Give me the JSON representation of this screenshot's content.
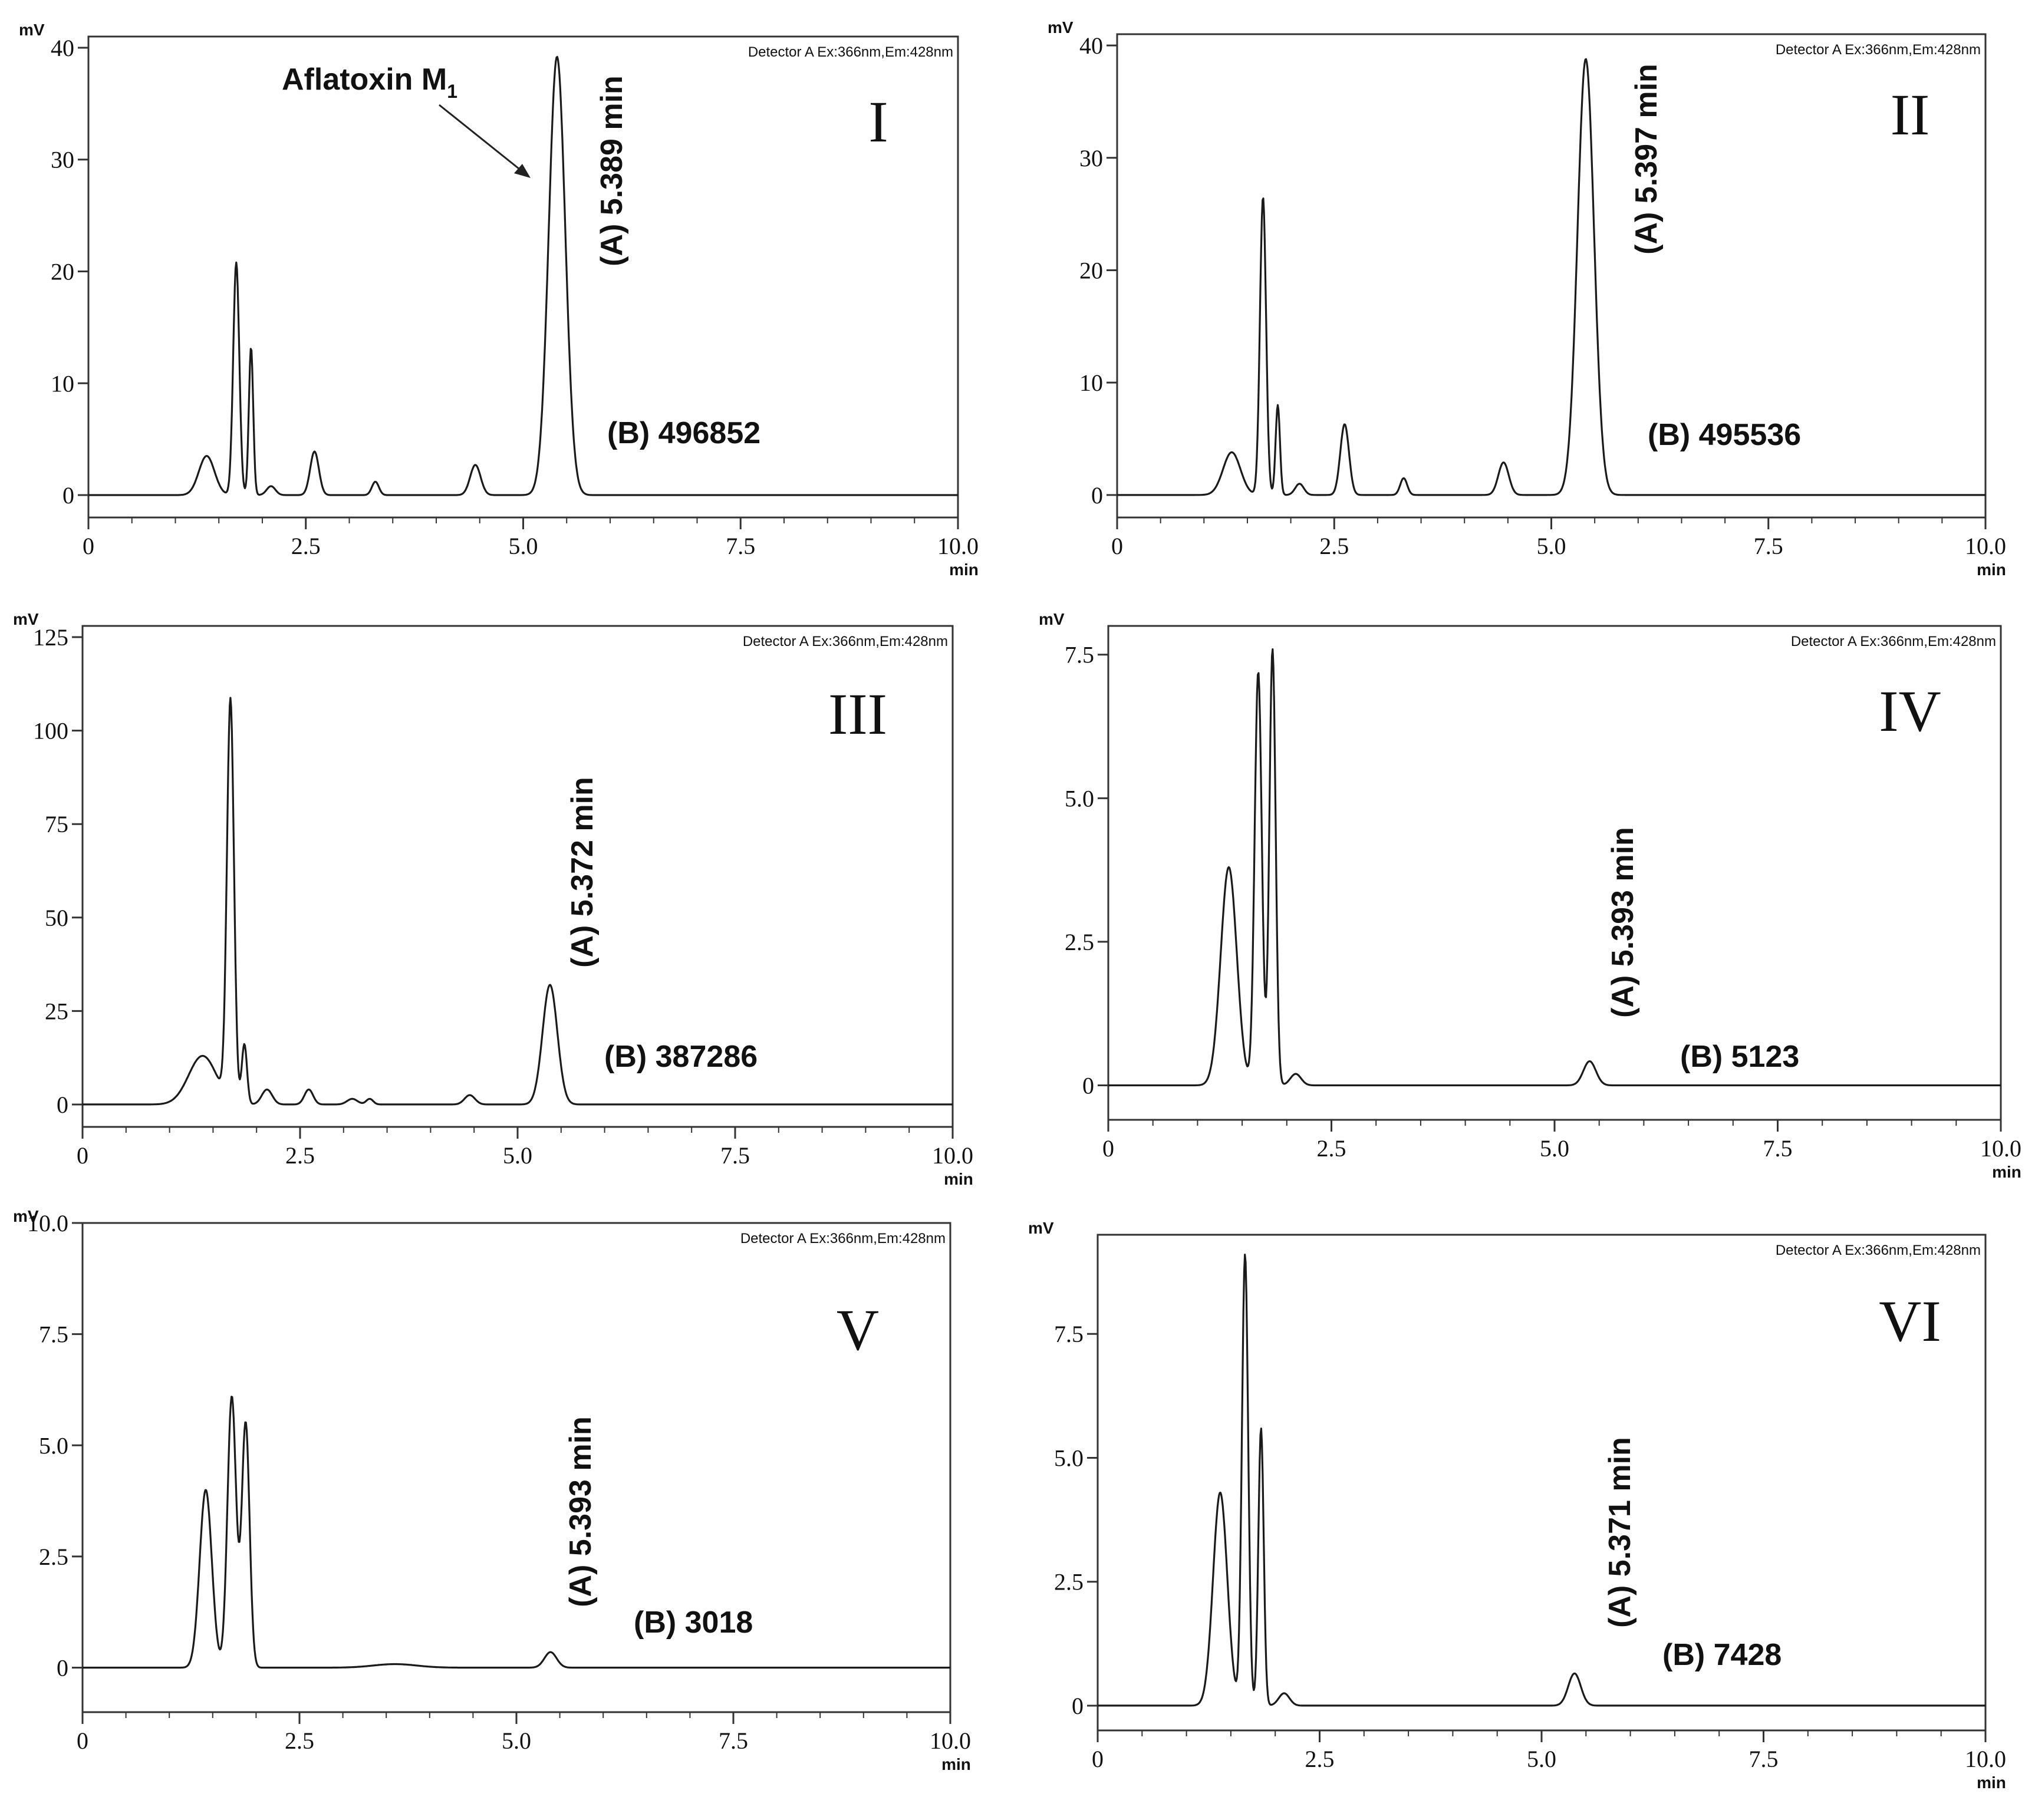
{
  "colors": {
    "trace": "#1a1a1a",
    "axis": "#333333",
    "text": "#111111",
    "background": "#ffffff"
  },
  "chart_data": [
    {
      "type": "line",
      "panel_label": "I",
      "y_unit": "mV",
      "x_unit": "min",
      "detector_label": "Detector A Ex:366nm,Em:428nm",
      "xlim": [
        0,
        10.0
      ],
      "ylim": [
        -2,
        41
      ],
      "x_ticks": [
        0,
        2.5,
        5.0,
        7.5,
        10.0
      ],
      "x_tick_labels": [
        "0",
        "2.5",
        "5.0",
        "7.5",
        "10.0"
      ],
      "y_ticks": [
        0,
        10,
        20,
        30,
        40
      ],
      "y_tick_labels": [
        "0",
        "10",
        "20",
        "30",
        "40"
      ],
      "peaks": [
        {
          "rt": 1.36,
          "height": 3.5,
          "width": 0.09
        },
        {
          "rt": 1.7,
          "height": 20.8,
          "width": 0.035
        },
        {
          "rt": 1.87,
          "height": 13.2,
          "width": 0.025
        },
        {
          "rt": 2.1,
          "height": 0.8,
          "width": 0.05
        },
        {
          "rt": 2.6,
          "height": 3.9,
          "width": 0.05
        },
        {
          "rt": 3.3,
          "height": 1.2,
          "width": 0.04
        },
        {
          "rt": 4.45,
          "height": 2.7,
          "width": 0.06
        },
        {
          "rt": 5.389,
          "height": 39.2,
          "width": 0.095
        }
      ],
      "baseline": 0,
      "retention_label": "(A) 5.389 min",
      "area_label": "(B) 496852",
      "compound_annotation": {
        "text": "Aflatoxin M",
        "subscript": "1"
      }
    },
    {
      "type": "line",
      "panel_label": "II",
      "y_unit": "mV",
      "x_unit": "min",
      "detector_label": "Detector A Ex:366nm,Em:428nm",
      "xlim": [
        0,
        10.0
      ],
      "ylim": [
        -2,
        41
      ],
      "x_ticks": [
        0,
        2.5,
        5.0,
        7.5,
        10.0
      ],
      "x_tick_labels": [
        "0",
        "2.5",
        "5.0",
        "7.5",
        "10.0"
      ],
      "y_ticks": [
        0,
        10,
        20,
        30,
        40
      ],
      "y_tick_labels": [
        "0",
        "10",
        "20",
        "30",
        "40"
      ],
      "peaks": [
        {
          "rt": 1.32,
          "height": 3.8,
          "width": 0.1
        },
        {
          "rt": 1.68,
          "height": 26.5,
          "width": 0.035
        },
        {
          "rt": 1.85,
          "height": 8.0,
          "width": 0.025
        },
        {
          "rt": 2.1,
          "height": 1.0,
          "width": 0.05
        },
        {
          "rt": 2.62,
          "height": 6.3,
          "width": 0.05
        },
        {
          "rt": 3.3,
          "height": 1.5,
          "width": 0.04
        },
        {
          "rt": 4.45,
          "height": 2.9,
          "width": 0.06
        },
        {
          "rt": 5.397,
          "height": 38.8,
          "width": 0.095
        }
      ],
      "baseline": 0,
      "retention_label": "(A) 5.397 min",
      "area_label": "(B) 495536"
    },
    {
      "type": "line",
      "panel_label": "III",
      "y_unit": "mV",
      "x_unit": "min",
      "detector_label": "Detector A Ex:366nm,Em:428nm",
      "xlim": [
        0,
        10.0
      ],
      "ylim": [
        -6,
        128
      ],
      "x_ticks": [
        0,
        2.5,
        5.0,
        7.5,
        10.0
      ],
      "x_tick_labels": [
        "0",
        "2.5",
        "5.0",
        "7.5",
        "10.0"
      ],
      "y_ticks": [
        0,
        25,
        50,
        75,
        100,
        125
      ],
      "y_tick_labels": [
        "0",
        "25",
        "50",
        "75",
        "100",
        "125"
      ],
      "peaks": [
        {
          "rt": 1.38,
          "height": 13.0,
          "width": 0.16
        },
        {
          "rt": 1.7,
          "height": 107.0,
          "width": 0.04
        },
        {
          "rt": 1.86,
          "height": 16.0,
          "width": 0.03
        },
        {
          "rt": 2.12,
          "height": 4.0,
          "width": 0.06
        },
        {
          "rt": 2.6,
          "height": 4.0,
          "width": 0.05
        },
        {
          "rt": 3.1,
          "height": 1.5,
          "width": 0.06
        },
        {
          "rt": 3.3,
          "height": 1.5,
          "width": 0.04
        },
        {
          "rt": 4.45,
          "height": 2.5,
          "width": 0.06
        },
        {
          "rt": 5.372,
          "height": 32.0,
          "width": 0.085
        }
      ],
      "baseline": 0,
      "retention_label": "(A) 5.372 min",
      "area_label": "(B) 387286"
    },
    {
      "type": "line",
      "panel_label": "IV",
      "y_unit": "mV",
      "x_unit": "min",
      "detector_label": "Detector A Ex:366nm,Em:428nm",
      "xlim": [
        0,
        10.0
      ],
      "ylim": [
        -0.6,
        8.0
      ],
      "x_ticks": [
        0,
        2.5,
        5.0,
        7.5,
        10.0
      ],
      "x_tick_labels": [
        "0",
        "2.5",
        "5.0",
        "7.5",
        "10.0"
      ],
      "y_ticks": [
        0,
        2.5,
        5.0,
        7.5
      ],
      "y_tick_labels": [
        "0",
        "2.5",
        "5.0",
        "7.5"
      ],
      "peaks": [
        {
          "rt": 1.35,
          "height": 3.8,
          "width": 0.09
        },
        {
          "rt": 1.68,
          "height": 7.2,
          "width": 0.04
        },
        {
          "rt": 1.84,
          "height": 7.6,
          "width": 0.035
        },
        {
          "rt": 2.1,
          "height": 0.2,
          "width": 0.06
        },
        {
          "rt": 5.393,
          "height": 0.42,
          "width": 0.07
        }
      ],
      "baseline": 0,
      "retention_label": "(A) 5.393 min",
      "area_label": "(B) 5123"
    },
    {
      "type": "line",
      "panel_label": "V",
      "y_unit": "mV",
      "x_unit": "min",
      "detector_label": "Detector A Ex:366nm,Em:428nm",
      "xlim": [
        0,
        10.0
      ],
      "ylim": [
        -1.0,
        10.0
      ],
      "x_ticks": [
        0,
        2.5,
        5.0,
        7.5,
        10.0
      ],
      "x_tick_labels": [
        "0",
        "2.5",
        "5.0",
        "7.5",
        "10.0"
      ],
      "y_ticks": [
        0,
        2.5,
        5.0,
        7.5,
        10.0
      ],
      "y_tick_labels": [
        "0",
        "2.5",
        "5.0",
        "7.5",
        "10.0"
      ],
      "peaks": [
        {
          "rt": 1.42,
          "height": 4.0,
          "width": 0.07
        },
        {
          "rt": 1.72,
          "height": 6.1,
          "width": 0.05
        },
        {
          "rt": 1.88,
          "height": 5.5,
          "width": 0.045
        },
        {
          "rt": 3.6,
          "height": 0.08,
          "width": 0.25
        },
        {
          "rt": 5.393,
          "height": 0.35,
          "width": 0.07
        }
      ],
      "baseline": 0,
      "retention_label": "(A) 5.393 min",
      "area_label": "(B) 3018"
    },
    {
      "type": "line",
      "panel_label": "VI",
      "y_unit": "mV",
      "x_unit": "min",
      "detector_label": "Detector A Ex:366nm,Em:428nm",
      "xlim": [
        0,
        10.0
      ],
      "ylim": [
        -0.5,
        9.5
      ],
      "x_ticks": [
        0,
        2.5,
        5.0,
        7.5,
        10.0
      ],
      "x_tick_labels": [
        "0",
        "2.5",
        "5.0",
        "7.5",
        "10.0"
      ],
      "y_ticks": [
        0,
        2.5,
        5.0,
        7.5
      ],
      "y_tick_labels": [
        "0",
        "2.5",
        "5.0",
        "7.5"
      ],
      "peaks": [
        {
          "rt": 1.38,
          "height": 4.3,
          "width": 0.08
        },
        {
          "rt": 1.66,
          "height": 9.1,
          "width": 0.035
        },
        {
          "rt": 1.84,
          "height": 5.6,
          "width": 0.03
        },
        {
          "rt": 2.1,
          "height": 0.25,
          "width": 0.06
        },
        {
          "rt": 5.371,
          "height": 0.65,
          "width": 0.07
        }
      ],
      "baseline": 0,
      "retention_label": "(A) 5.371 min",
      "area_label": "(B) 7428"
    }
  ]
}
